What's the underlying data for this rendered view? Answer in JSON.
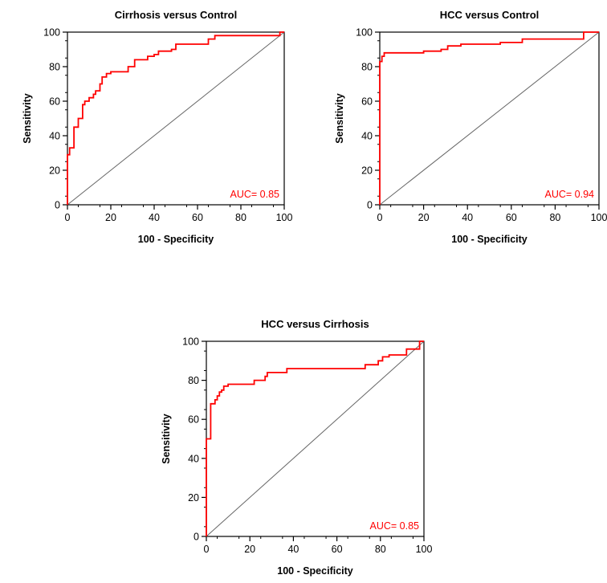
{
  "chart_data": [
    {
      "type": "line",
      "title": "Cirrhosis versus Control",
      "xlabel": "100 - Specificity",
      "ylabel": "Sensitivity",
      "xlim": [
        0,
        100
      ],
      "ylim": [
        0,
        100
      ],
      "xticks": [
        0,
        20,
        40,
        60,
        80,
        100
      ],
      "yticks": [
        0,
        20,
        40,
        60,
        80,
        100
      ],
      "xtick_labels": [
        "0",
        "20",
        "40",
        "60",
        "80",
        "100"
      ],
      "ytick_labels": [
        "0",
        "20",
        "40",
        "60",
        "80",
        "100"
      ],
      "reference_line": [
        [
          0,
          0
        ],
        [
          100,
          100
        ]
      ],
      "annotation": "AUC= 0.85",
      "series": [
        {
          "color": "#ff0000",
          "points": [
            [
              0,
              0
            ],
            [
              0,
              29
            ],
            [
              1,
              29
            ],
            [
              1,
              33
            ],
            [
              3,
              33
            ],
            [
              3,
              45
            ],
            [
              5,
              45
            ],
            [
              5,
              50
            ],
            [
              7,
              50
            ],
            [
              7,
              58
            ],
            [
              8,
              58
            ],
            [
              8,
              60
            ],
            [
              10,
              60
            ],
            [
              10,
              62
            ],
            [
              12,
              62
            ],
            [
              12,
              64
            ],
            [
              13,
              64
            ],
            [
              13,
              66
            ],
            [
              15,
              66
            ],
            [
              15,
              70
            ],
            [
              16,
              70
            ],
            [
              16,
              74
            ],
            [
              18,
              74
            ],
            [
              18,
              76
            ],
            [
              20,
              76
            ],
            [
              20,
              77
            ],
            [
              28,
              77
            ],
            [
              28,
              80
            ],
            [
              31,
              80
            ],
            [
              31,
              84
            ],
            [
              37,
              84
            ],
            [
              37,
              86
            ],
            [
              40,
              86
            ],
            [
              40,
              87
            ],
            [
              42,
              87
            ],
            [
              42,
              89
            ],
            [
              48,
              89
            ],
            [
              48,
              90
            ],
            [
              50,
              90
            ],
            [
              50,
              93
            ],
            [
              57,
              93
            ],
            [
              57,
              93
            ],
            [
              65,
              93
            ],
            [
              65,
              96
            ],
            [
              68,
              96
            ],
            [
              68,
              98
            ],
            [
              82,
              98
            ],
            [
              82,
              98
            ],
            [
              98,
              98
            ],
            [
              98,
              100
            ],
            [
              100,
              100
            ]
          ]
        }
      ]
    },
    {
      "type": "line",
      "title": "HCC versus Control",
      "xlabel": "100 - Specificity",
      "ylabel": "Sensitivity",
      "xlim": [
        0,
        100
      ],
      "ylim": [
        0,
        100
      ],
      "xticks": [
        0,
        20,
        40,
        60,
        80,
        100
      ],
      "yticks": [
        0,
        20,
        40,
        60,
        80,
        100
      ],
      "xtick_labels": [
        "0",
        "20",
        "40",
        "60",
        "80",
        "100"
      ],
      "ytick_labels": [
        "0",
        "20",
        "40",
        "60",
        "80",
        "100"
      ],
      "reference_line": [
        [
          0,
          0
        ],
        [
          100,
          100
        ]
      ],
      "annotation": "AUC= 0.94",
      "series": [
        {
          "color": "#ff0000",
          "points": [
            [
              0,
              0
            ],
            [
              0,
              83
            ],
            [
              1,
              83
            ],
            [
              1,
              86
            ],
            [
              2,
              86
            ],
            [
              2,
              88
            ],
            [
              20,
              88
            ],
            [
              20,
              89
            ],
            [
              28,
              89
            ],
            [
              28,
              90
            ],
            [
              31,
              90
            ],
            [
              31,
              92
            ],
            [
              37,
              92
            ],
            [
              37,
              93
            ],
            [
              55,
              93
            ],
            [
              55,
              94
            ],
            [
              65,
              94
            ],
            [
              65,
              96
            ],
            [
              93,
              96
            ],
            [
              93,
              100
            ],
            [
              100,
              100
            ]
          ]
        }
      ]
    },
    {
      "type": "line",
      "title": "HCC versus Cirrhosis",
      "xlabel": "100 - Specificity",
      "ylabel": "Sensitivity",
      "xlim": [
        0,
        100
      ],
      "ylim": [
        0,
        100
      ],
      "xticks": [
        0,
        20,
        40,
        60,
        80,
        100
      ],
      "yticks": [
        0,
        20,
        40,
        60,
        80,
        100
      ],
      "xtick_labels": [
        "0",
        "20",
        "40",
        "60",
        "80",
        "100"
      ],
      "ytick_labels": [
        "0",
        "20",
        "40",
        "60",
        "80",
        "100"
      ],
      "reference_line": [
        [
          0,
          0
        ],
        [
          100,
          100
        ]
      ],
      "annotation": "AUC= 0.85",
      "series": [
        {
          "color": "#ff0000",
          "points": [
            [
              0,
              0
            ],
            [
              0,
              50
            ],
            [
              2,
              50
            ],
            [
              2,
              68
            ],
            [
              4,
              68
            ],
            [
              4,
              70
            ],
            [
              5,
              70
            ],
            [
              5,
              72
            ],
            [
              6,
              72
            ],
            [
              6,
              74
            ],
            [
              7,
              74
            ],
            [
              7,
              75
            ],
            [
              8,
              75
            ],
            [
              8,
              77
            ],
            [
              10,
              77
            ],
            [
              10,
              78
            ],
            [
              22,
              78
            ],
            [
              22,
              80
            ],
            [
              27,
              80
            ],
            [
              27,
              82
            ],
            [
              28,
              82
            ],
            [
              28,
              84
            ],
            [
              37,
              84
            ],
            [
              37,
              86
            ],
            [
              73,
              86
            ],
            [
              73,
              88
            ],
            [
              79,
              88
            ],
            [
              79,
              90
            ],
            [
              81,
              90
            ],
            [
              81,
              92
            ],
            [
              84,
              92
            ],
            [
              84,
              93
            ],
            [
              92,
              93
            ],
            [
              92,
              96
            ],
            [
              98,
              96
            ],
            [
              98,
              100
            ],
            [
              100,
              100
            ]
          ]
        }
      ]
    }
  ]
}
